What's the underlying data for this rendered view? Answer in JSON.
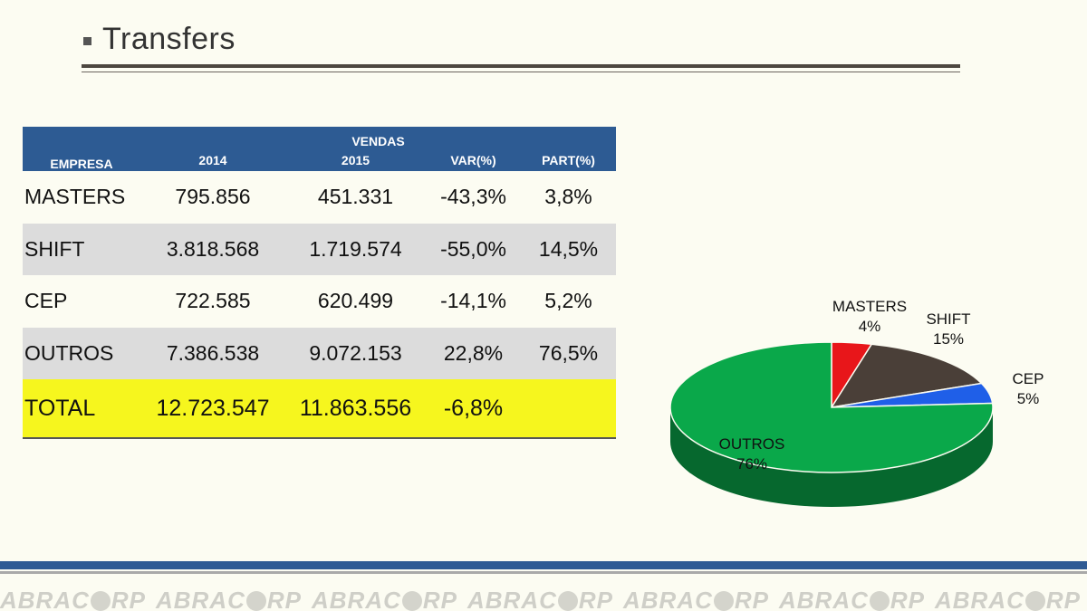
{
  "header": {
    "title": "Transfers"
  },
  "table": {
    "group_header": "VENDAS",
    "columns": [
      "EMPRESA",
      "2014",
      "2015",
      "VAR(%)",
      "PART(%)"
    ],
    "rows": [
      {
        "empresa": "MASTERS",
        "y2014": "795.856",
        "y2015": "451.331",
        "var": "-43,3%",
        "part": "3,8%"
      },
      {
        "empresa": "SHIFT",
        "y2014": "3.818.568",
        "y2015": "1.719.574",
        "var": "-55,0%",
        "part": "14,5%"
      },
      {
        "empresa": "CEP",
        "y2014": "722.585",
        "y2015": "620.499",
        "var": "-14,1%",
        "part": "5,2%"
      },
      {
        "empresa": "OUTROS",
        "y2014": "7.386.538",
        "y2015": "9.072.153",
        "var": "22,8%",
        "part": "76,5%"
      }
    ],
    "total": {
      "empresa": "TOTAL",
      "y2014": "12.723.547",
      "y2015": "11.863.556",
      "var": "-6,8%",
      "part": ""
    }
  },
  "chart_data": {
    "type": "pie",
    "title": "",
    "categories": [
      "MASTERS",
      "SHIFT",
      "CEP",
      "OUTROS"
    ],
    "values": [
      4,
      15,
      5,
      76
    ],
    "labels": [
      "4%",
      "15%",
      "5%",
      "76%"
    ],
    "colors": [
      "#e8161a",
      "#4a3f38",
      "#1f5fe8",
      "#0aa84a"
    ]
  },
  "footer": {
    "logo_text": "ABRACORP",
    "logo_part1": "ABRAC",
    "logo_part2": "RP"
  }
}
